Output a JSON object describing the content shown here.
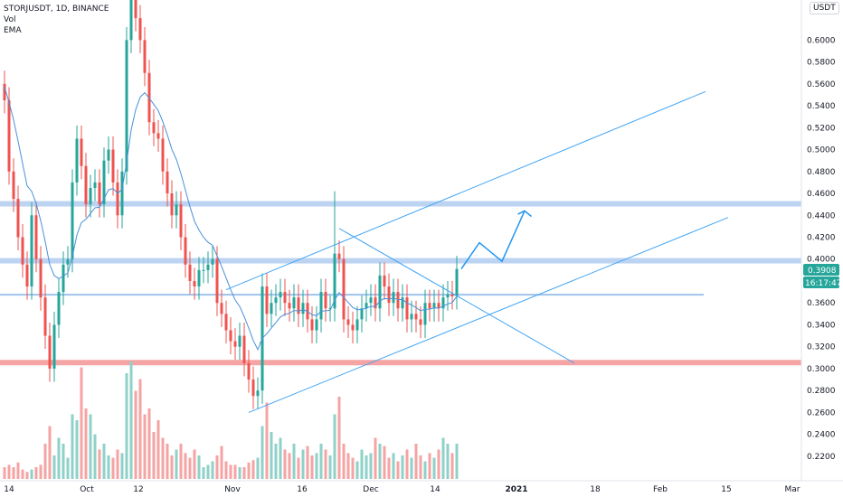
{
  "legend": {
    "symbol": "STORJUSDT, 1D, BINANCE",
    "vol": "Vol",
    "ema": "EMA"
  },
  "unit": "USDT",
  "colors": {
    "up": "#26a69a",
    "down": "#ef5350",
    "upVol": "#8fd1c9",
    "downVol": "#f5a3a3",
    "line": "#2196f3",
    "zone": "#bcd4f2",
    "redZone": "#f4a4a4",
    "tag": "#26a69a"
  },
  "chart_data": {
    "type": "candlestick",
    "ylim": [
      0.21,
      0.63
    ],
    "y_ticks": [
      "0.6000",
      "0.5800",
      "0.5600",
      "0.5400",
      "0.5200",
      "0.5000",
      "0.4800",
      "0.4600",
      "0.4400",
      "0.4200",
      "0.4000",
      "0.3800",
      "0.3600",
      "0.3400",
      "0.3200",
      "0.3000",
      "0.2800",
      "0.2600",
      "0.2400",
      "0.2200"
    ],
    "x_ticks": [
      "14",
      "Oct",
      "12",
      "Nov",
      "16",
      "Dec",
      "14",
      "2021",
      "18",
      "Feb",
      "15",
      "Mar"
    ],
    "last_price": "0.3908",
    "countdown": "16:17:47",
    "closes": [
      0.545,
      0.48,
      0.455,
      0.42,
      0.395,
      0.375,
      0.44,
      0.4,
      0.365,
      0.33,
      0.3,
      0.34,
      0.37,
      0.395,
      0.4,
      0.47,
      0.51,
      0.485,
      0.45,
      0.465,
      0.47,
      0.45,
      0.49,
      0.5,
      0.47,
      0.44,
      0.48,
      0.6,
      0.65,
      0.62,
      0.6,
      0.57,
      0.525,
      0.515,
      0.51,
      0.48,
      0.46,
      0.44,
      0.45,
      0.42,
      0.395,
      0.38,
      0.375,
      0.39,
      0.39,
      0.395,
      0.4,
      0.36,
      0.35,
      0.335,
      0.325,
      0.32,
      0.33,
      0.305,
      0.29,
      0.275,
      0.28,
      0.375,
      0.35,
      0.36,
      0.365,
      0.37,
      0.36,
      0.355,
      0.365,
      0.35,
      0.36,
      0.345,
      0.335,
      0.345,
      0.37,
      0.355,
      0.355,
      0.405,
      0.4,
      0.345,
      0.34,
      0.335,
      0.345,
      0.355,
      0.36,
      0.365,
      0.355,
      0.385,
      0.375,
      0.36,
      0.37,
      0.355,
      0.365,
      0.345,
      0.35,
      0.345,
      0.34,
      0.36,
      0.355,
      0.36,
      0.355,
      0.365,
      0.368,
      0.366,
      0.391
    ],
    "open0": 0.56,
    "volumes": [
      0.1,
      0.12,
      0.1,
      0.14,
      0.08,
      0.06,
      0.08,
      0.1,
      0.12,
      0.3,
      0.45,
      0.2,
      0.35,
      0.3,
      0.18,
      0.55,
      0.5,
      0.95,
      0.6,
      0.55,
      0.38,
      0.25,
      0.3,
      0.2,
      0.18,
      0.25,
      0.22,
      0.9,
      1.0,
      0.75,
      0.85,
      0.55,
      0.6,
      0.4,
      0.5,
      0.35,
      0.3,
      0.2,
      0.25,
      0.3,
      0.22,
      0.18,
      0.25,
      0.2,
      0.1,
      0.12,
      0.15,
      0.2,
      0.28,
      0.15,
      0.12,
      0.12,
      0.1,
      0.1,
      0.14,
      0.16,
      0.18,
      0.45,
      0.65,
      0.4,
      0.3,
      0.35,
      0.25,
      0.22,
      0.3,
      0.18,
      0.25,
      0.28,
      0.2,
      0.22,
      0.3,
      0.25,
      0.2,
      0.55,
      0.7,
      0.3,
      0.22,
      0.18,
      0.15,
      0.25,
      0.2,
      0.22,
      0.35,
      0.3,
      0.28,
      0.18,
      0.22,
      0.15,
      0.2,
      0.25,
      0.18,
      0.3,
      0.2,
      0.15,
      0.22,
      0.18,
      0.25,
      0.35,
      0.3,
      0.22,
      0.3
    ]
  }
}
